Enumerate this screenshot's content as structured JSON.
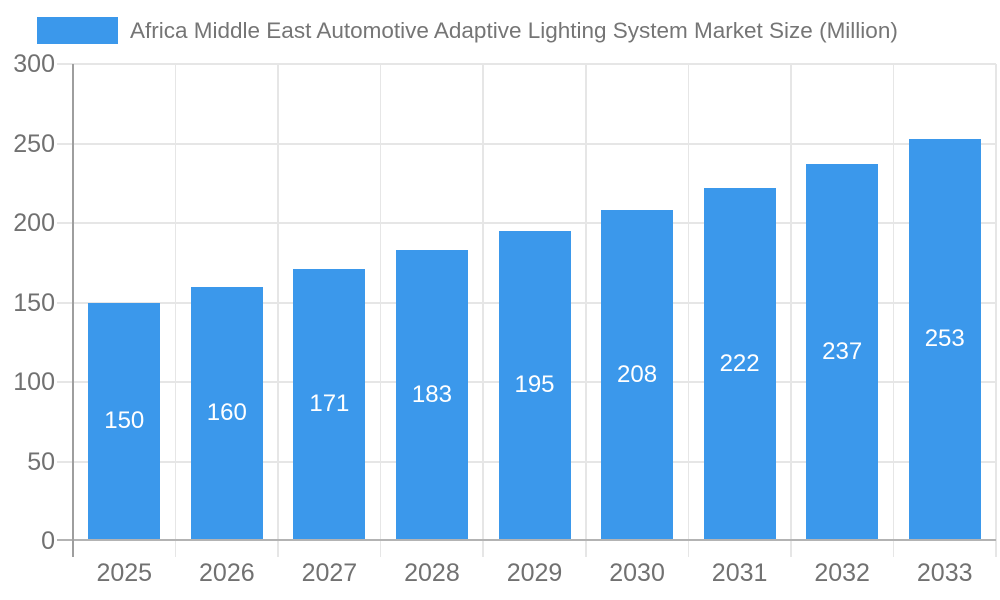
{
  "legend": {
    "label": "Africa Middle East Automotive Adaptive Lighting System Market Size (Million)"
  },
  "colors": {
    "bar": "#3b98eb",
    "bar_label": "#ffffff",
    "gridline": "#e6e6e6",
    "x_axis_line": "#b3b3b3",
    "y_axis_line": "#9e9e9e",
    "tick_label": "#717171",
    "legend_text": "#757575",
    "background": "#ffffff"
  },
  "chart_data": {
    "type": "bar",
    "title": "Africa Middle East Automotive Adaptive Lighting System Market Size (Million)",
    "categories": [
      "2025",
      "2026",
      "2027",
      "2028",
      "2029",
      "2030",
      "2031",
      "2032",
      "2033"
    ],
    "values": [
      150,
      160,
      171,
      183,
      195,
      208,
      222,
      237,
      253
    ],
    "series": [
      {
        "name": "Africa Middle East Automotive Adaptive Lighting System Market Size (Million)",
        "values": [
          150,
          160,
          171,
          183,
          195,
          208,
          222,
          237,
          253
        ]
      }
    ],
    "xlabel": "",
    "ylabel": "",
    "ylim": [
      0,
      300
    ],
    "yticks": [
      0,
      50,
      100,
      150,
      200,
      250,
      300
    ],
    "grid": true,
    "legend_position": "top-left",
    "value_labels_position": "inside-center"
  }
}
